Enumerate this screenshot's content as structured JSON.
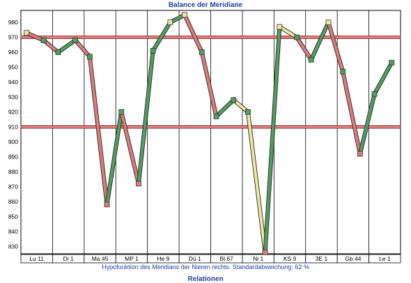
{
  "chart_data": {
    "type": "line",
    "title": "Balance der Meridiane",
    "xlabel": "Relationen",
    "caption": "Hypofunktion des Meridians der Nieren rechts. Standardabweichung: 62 %",
    "categories": [
      "Lu 11",
      "Di 1",
      "Ma 45",
      "MP 1",
      "He 9",
      "Dü 1",
      "Bl 67",
      "Ni 1",
      "KS 9",
      "3E 1",
      "Gb 44",
      "Le 1"
    ],
    "ylim": [
      825,
      988
    ],
    "yticks": [
      830,
      840,
      850,
      860,
      870,
      880,
      890,
      900,
      910,
      920,
      930,
      940,
      950,
      960,
      970,
      980
    ],
    "upper_limit": 970,
    "lower_limit": 910,
    "series": [
      {
        "values": [
          [
            973,
            968
          ],
          [
            960,
            968
          ],
          [
            957,
            858
          ],
          [
            920,
            872
          ],
          [
            961,
            980
          ],
          [
            985,
            960
          ],
          [
            917,
            928
          ],
          [
            920,
            826
          ],
          [
            977,
            970
          ],
          [
            955,
            980
          ],
          [
            947,
            892
          ],
          [
            932,
            953
          ]
        ]
      }
    ],
    "colors": {
      "up": "#4f9f5f",
      "down": "#e07a7a",
      "neutral": "#f0e8a0",
      "limit": "#d97a7a",
      "limit_edge": "#8a2a2a",
      "text": "#1f3f9f"
    }
  }
}
